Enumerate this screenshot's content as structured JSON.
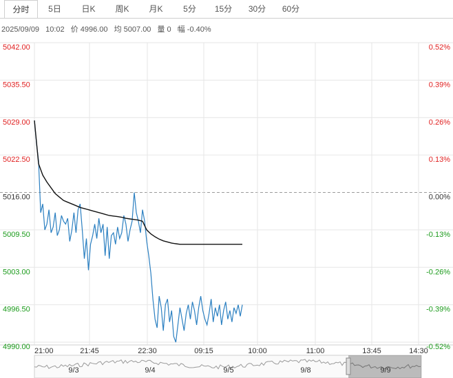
{
  "tabs": [
    "分时",
    "5日",
    "日K",
    "周K",
    "月K",
    "5分",
    "15分",
    "30分",
    "60分"
  ],
  "active_tab": 0,
  "info": {
    "date": "2025/09/09",
    "time": "10:02",
    "price": "价 4996.00",
    "avg": "均 5007.00",
    "volume": "量 0",
    "change": "幅 -0.40%"
  },
  "colors": {
    "up": "#e02020",
    "down": "#1a9a1a",
    "neutral": "#333333",
    "price_line": "#2a7fc1",
    "avg_line": "#111111"
  },
  "chart_data": {
    "type": "line",
    "prev_close": 5016.0,
    "ylim": [
      4990.0,
      5042.0
    ],
    "y_ticks_left": [
      "5042.00",
      "5035.50",
      "5029.00",
      "5022.50",
      "5016.00",
      "5009.50",
      "5003.00",
      "4996.50",
      "4990.00"
    ],
    "y_ticks_right": [
      "0.52%",
      "0.39%",
      "0.26%",
      "0.13%",
      "0.00%",
      "-0.13%",
      "-0.26%",
      "-0.39%",
      "-0.52%"
    ],
    "x_ticks": [
      "21:00",
      "21:45",
      "22:30",
      "09:15",
      "10:00",
      "11:00",
      "13:45",
      "14:30"
    ],
    "nav_dates": [
      "9/3",
      "9/4",
      "9/5",
      "9/8",
      "9/9"
    ],
    "series": [
      {
        "x": [
          0,
          1,
          2,
          3,
          4,
          5,
          6,
          7,
          8,
          9,
          10,
          11,
          12,
          13,
          14,
          15,
          16,
          17,
          18,
          19,
          20,
          21,
          22,
          23,
          24,
          25,
          26,
          27,
          28,
          29,
          30,
          31,
          32,
          33,
          34,
          35,
          36,
          37,
          38,
          39,
          40,
          41,
          42,
          43,
          44,
          45,
          46,
          47,
          48,
          49,
          50,
          51,
          52,
          53,
          54,
          55,
          56,
          57,
          58,
          59,
          60,
          61,
          62,
          63,
          64,
          65,
          66,
          67,
          68,
          69,
          70,
          71,
          72,
          73,
          74,
          75,
          76,
          77,
          78,
          79,
          80,
          81,
          82,
          83,
          84,
          85,
          86,
          87,
          88,
          89,
          90,
          91,
          92,
          93,
          94,
          95,
          96,
          97,
          98,
          99,
          100
        ],
        "values": [
          5028.5,
          5024.5,
          5021.5,
          5012.5,
          5014.0,
          5009.5,
          5010.5,
          5013.0,
          5009.0,
          5010.0,
          5012.5,
          5008.5,
          5009.5,
          5012.0,
          5011.0,
          5010.5,
          5011.5,
          5007.5,
          5009.5,
          5012.5,
          5009.0,
          5013.0,
          5014.0,
          5009.5,
          5004.5,
          5008.0,
          5002.5,
          5007.0,
          5008.5,
          5010.5,
          5008.0,
          5011.5,
          5009.0,
          5010.5,
          5005.0,
          5010.0,
          5004.5,
          5008.5,
          5009.0,
          5007.0,
          5010.0,
          5008.0,
          5009.0,
          5012.0,
          5010.5,
          5007.5,
          5009.5,
          5011.0,
          5016.0,
          5012.5,
          5011.0,
          5009.0,
          5013.0,
          5011.0,
          5007.5,
          5005.0,
          5002.0,
          4997.5,
          4994.0,
          4992.5,
          4998.0,
          4996.0,
          4992.0,
          4996.5,
          4997.5,
          4993.5,
          4995.5,
          4991.0,
          4990.0,
          4993.0,
          4996.0,
          4994.0,
          4992.0,
          4995.0,
          4996.5,
          4994.0,
          4997.0,
          4995.5,
          4993.0,
          4996.0,
          4998.0,
          4995.5,
          4994.0,
          4993.0,
          4995.0,
          4997.5,
          4993.5,
          4996.0,
          4994.5,
          4996.5,
          4993.0,
          4995.5,
          4997.0,
          4994.0,
          4995.5,
          4993.5,
          4996.0,
          4995.0,
          4996.5,
          4994.5,
          4996.5
        ]
      },
      {
        "x": [
          0,
          2,
          4,
          6,
          8,
          10,
          12,
          14,
          16,
          18,
          20,
          22,
          24,
          26,
          28,
          30,
          32,
          34,
          36,
          38,
          40,
          42,
          44,
          46,
          48,
          50,
          52,
          54,
          56,
          58,
          60,
          62,
          64,
          66,
          68,
          70,
          72,
          74,
          76,
          78,
          80,
          82,
          84,
          86,
          88,
          90,
          92,
          94,
          96,
          98,
          100
        ],
        "values": [
          5028.5,
          5021.0,
          5019.0,
          5017.8,
          5016.8,
          5015.8,
          5015.2,
          5014.6,
          5014.3,
          5014.0,
          5013.7,
          5013.4,
          5013.2,
          5013.0,
          5012.8,
          5012.6,
          5012.4,
          5012.2,
          5012.0,
          5011.9,
          5011.8,
          5011.7,
          5011.5,
          5011.4,
          5011.3,
          5011.2,
          5011.0,
          5009.5,
          5008.8,
          5008.3,
          5007.9,
          5007.6,
          5007.4,
          5007.2,
          5007.1,
          5007.0,
          5007.0,
          5007.0,
          5007.0,
          5007.0,
          5007.0,
          5007.0,
          5007.0,
          5007.0,
          5007.0,
          5007.0,
          5007.0,
          5007.0,
          5007.0,
          5007.0,
          5007.0
        ]
      }
    ]
  }
}
